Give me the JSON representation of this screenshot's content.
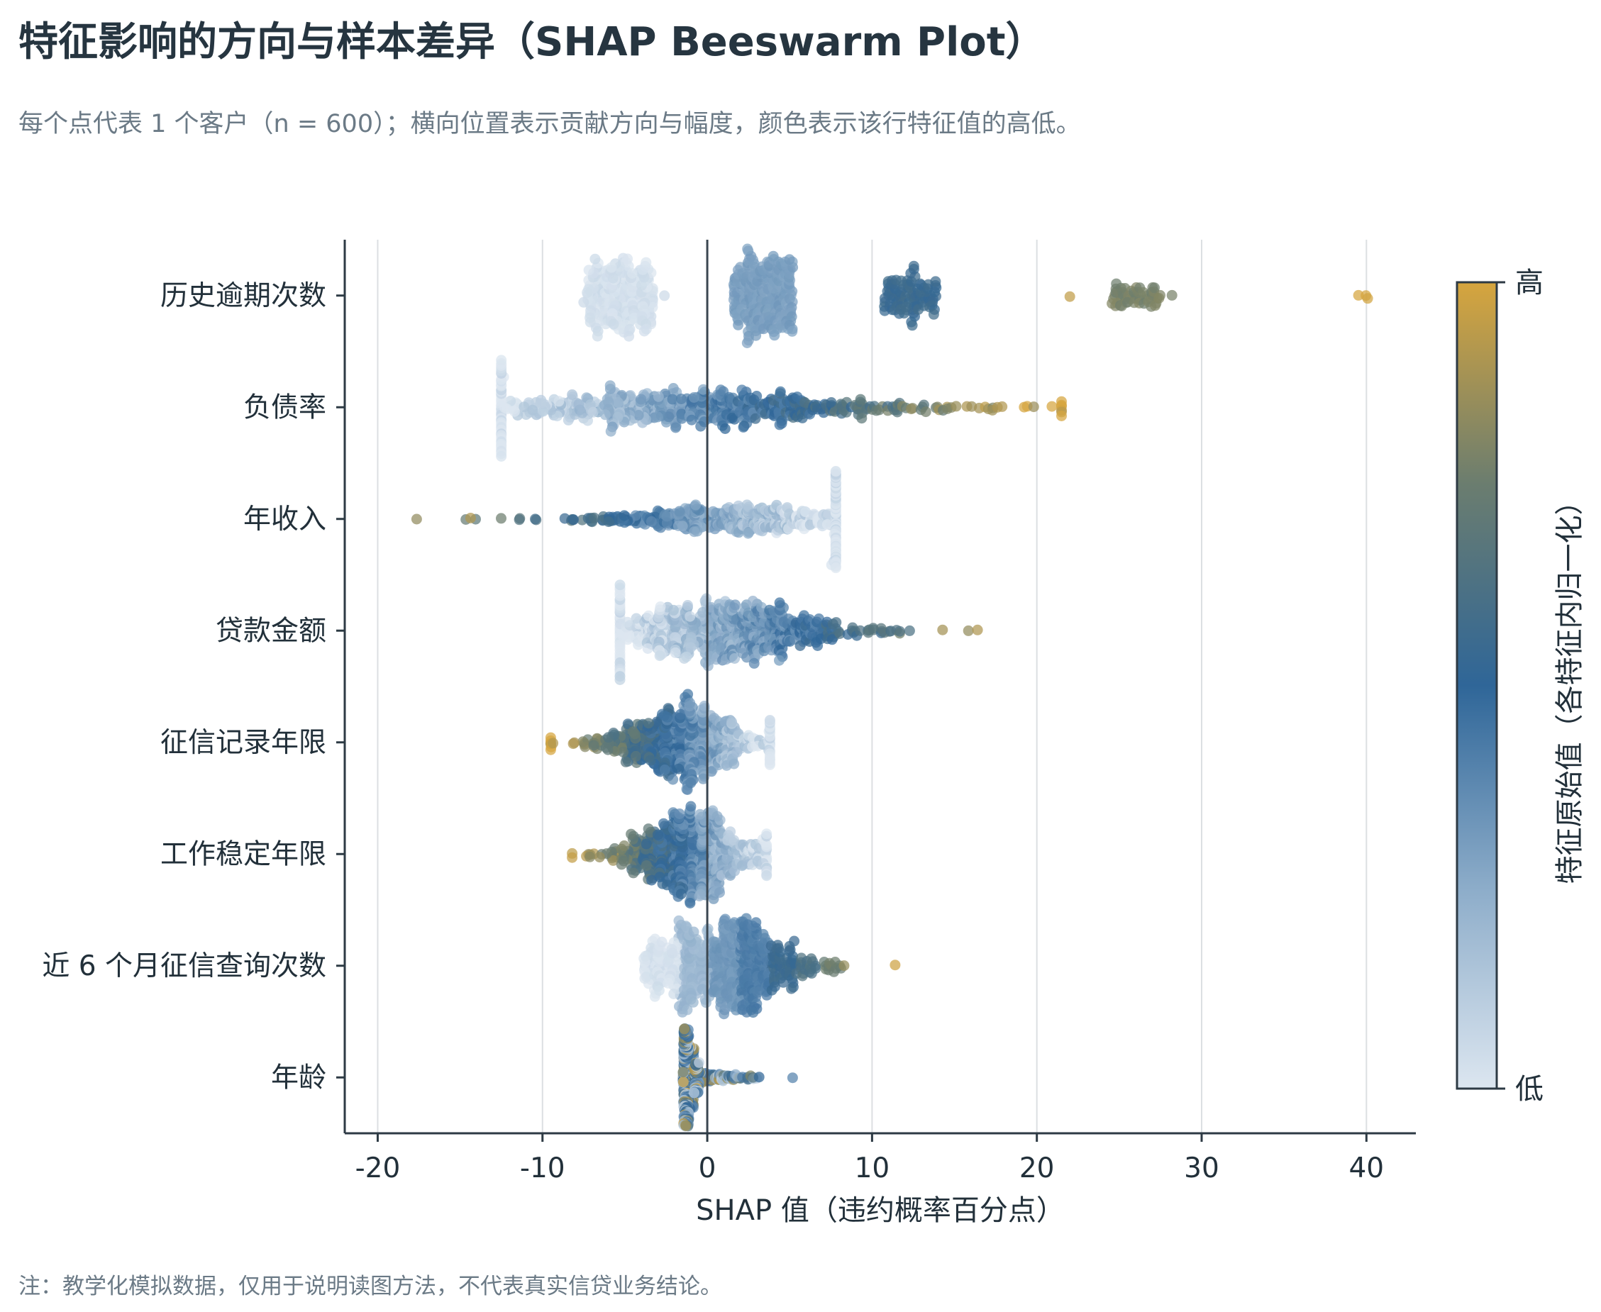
{
  "title": "特征影响的方向与样本差异（SHAP Beeswarm Plot）",
  "subtitle": "每个点代表 1 个客户（n = 600）；横向位置表示贡献方向与幅度，颜色表示该行特征值的高低。",
  "note": "注：教学化模拟数据，仅用于说明读图方法，不代表真实信贷业务结论。",
  "chart_data": {
    "type": "scatter",
    "subtype": "beeswarm",
    "n_samples": 600,
    "xlabel": "SHAP 值（违约概率百分点）",
    "xlim": [
      -22,
      43
    ],
    "xticks": [
      -20,
      -10,
      0,
      10,
      20,
      30,
      40
    ],
    "xtick_labels": [
      "-20",
      "-10",
      "0",
      "10",
      "20",
      "30",
      "40"
    ],
    "vertical_grid": true,
    "zero_line": true,
    "colorbar": {
      "label": "特征原始值（各特征内归一化）",
      "high_label": "高",
      "low_label": "低",
      "colors": [
        "#dce6f0",
        "#8cacc9",
        "#2f6698",
        "#6b7d6f",
        "#d6a53e"
      ]
    },
    "features": [
      {
        "name": "历史逾期次数",
        "distribution": [
          {
            "center": -5.3,
            "width": 2.0,
            "share": 0.37,
            "value": 0.03
          },
          {
            "center": 3.4,
            "width": 1.8,
            "share": 0.38,
            "value": 0.3
          },
          {
            "center": 12.3,
            "width": 1.6,
            "share": 0.16,
            "value": 0.55
          },
          {
            "center": 26.0,
            "width": 1.5,
            "share": 0.085,
            "value": 0.78
          },
          {
            "center": 39.7,
            "width": 0.5,
            "share": 0.005,
            "value": 1.0
          }
        ],
        "outliers": [
          [
            22.0,
            0.95
          ],
          [
            -7.5,
            0.05
          ],
          [
            -2.6,
            0.05
          ],
          [
            28.2,
            0.78
          ]
        ]
      },
      {
        "name": "负债率",
        "range": [
          -12.5,
          21.5
        ],
        "mode": -1,
        "spread": 9.5,
        "color_trend": "increasing"
      },
      {
        "name": "年收入",
        "range": [
          -19.5,
          7.8
        ],
        "mode": 2,
        "spread": 5.5,
        "color_trend": "decreasing"
      },
      {
        "name": "贷款金额",
        "range": [
          -5.3,
          19.5
        ],
        "mode": 1,
        "spread": 5,
        "color_trend": "increasing"
      },
      {
        "name": "征信记录年限",
        "range": [
          -9.5,
          3.8
        ],
        "mode": -1.5,
        "spread": 3,
        "color_trend": "decreasing"
      },
      {
        "name": "工作稳定年限",
        "range": [
          -8.2,
          3.6
        ],
        "mode": -1,
        "spread": 2.8,
        "color_trend": "decreasing"
      },
      {
        "name": "近 6 个月征信查询次数",
        "distribution": [
          {
            "center": -2.7,
            "width": 1.2,
            "share": 0.16,
            "value": 0.02
          },
          {
            "center": -0.8,
            "width": 1.0,
            "share": 0.21,
            "value": 0.2
          },
          {
            "center": 1.2,
            "width": 0.9,
            "share": 0.22,
            "value": 0.32
          },
          {
            "center": 2.9,
            "width": 0.9,
            "share": 0.22,
            "value": 0.42
          },
          {
            "center": 4.6,
            "width": 0.8,
            "share": 0.09,
            "value": 0.55
          },
          {
            "center": 6.0,
            "width": 0.6,
            "share": 0.03,
            "value": 0.62
          },
          {
            "center": 7.5,
            "width": 0.7,
            "share": 0.02,
            "value": 0.75
          }
        ],
        "outliers": [
          [
            11.4,
            0.98
          ],
          [
            8.3,
            0.85
          ]
        ]
      },
      {
        "name": "年龄",
        "range": [
          -2.3,
          6.3
        ],
        "mode": -1.2,
        "spread": 0.9,
        "color_trend": "mixed"
      }
    ]
  }
}
